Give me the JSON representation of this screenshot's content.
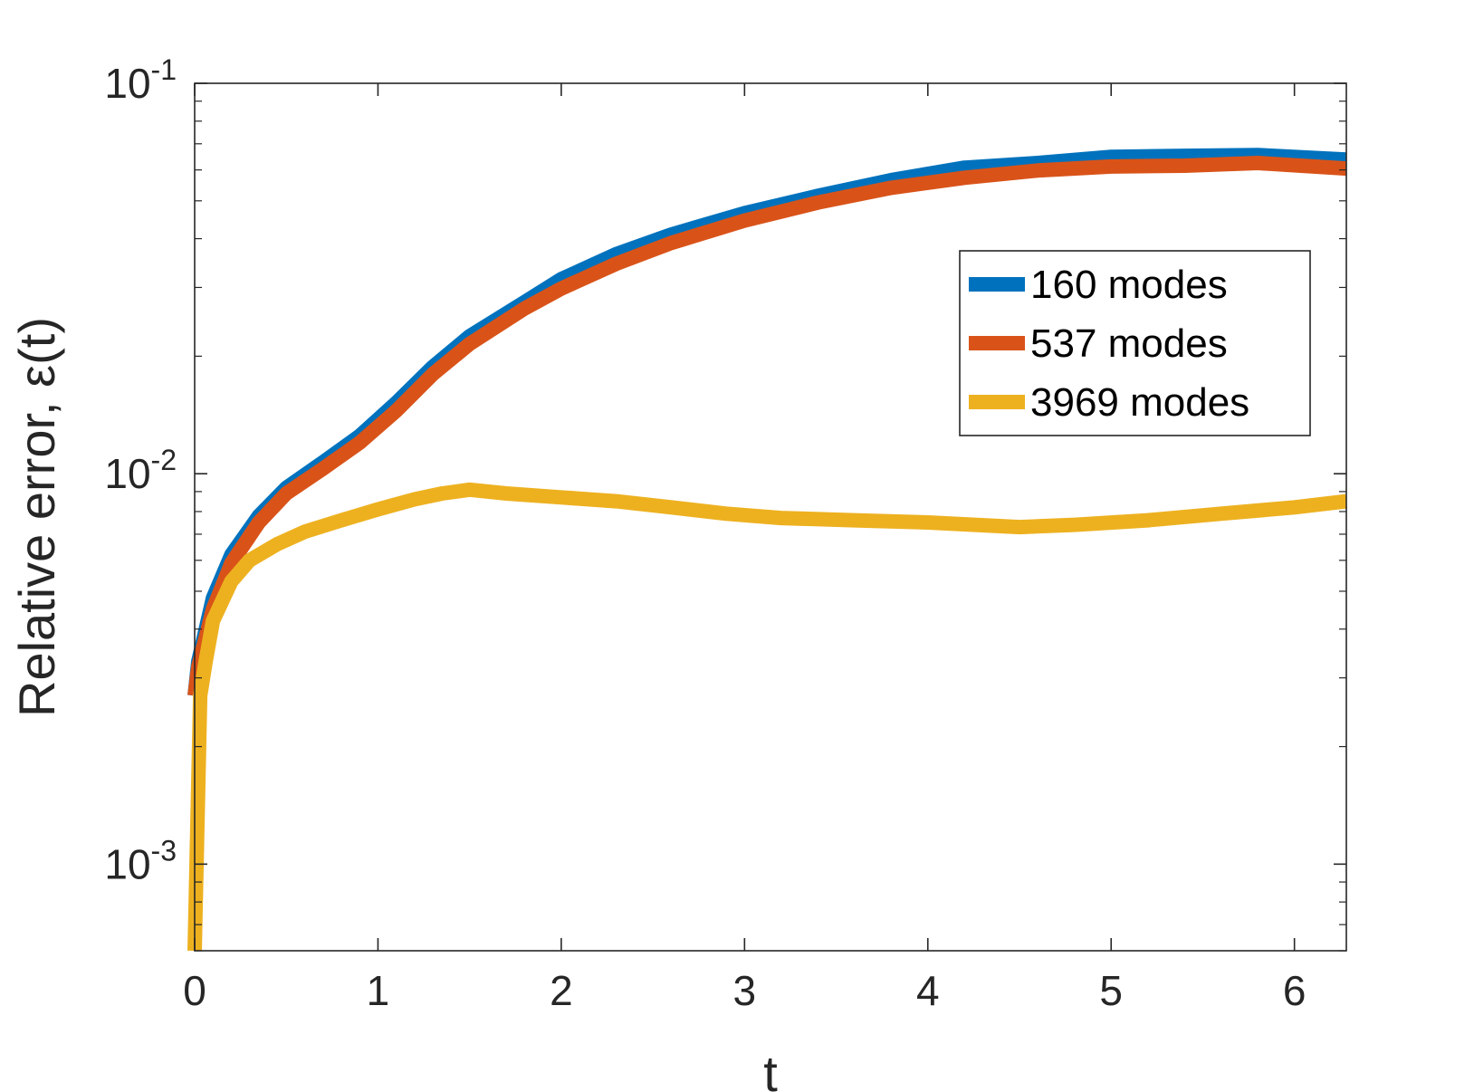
{
  "chart_data": {
    "type": "line",
    "title": "",
    "xlabel": "t",
    "ylabel": "Relative error, ε(t)",
    "xlim": [
      0,
      6.2832
    ],
    "ylim": [
      0.0006,
      0.1
    ],
    "yscale": "log",
    "grid": false,
    "legend_position": "upper-right",
    "x_ticks": [
      {
        "value": 0,
        "label": "0"
      },
      {
        "value": 1,
        "label": "1"
      },
      {
        "value": 2,
        "label": "2"
      },
      {
        "value": 3,
        "label": "3"
      },
      {
        "value": 4,
        "label": "4"
      },
      {
        "value": 5,
        "label": "5"
      },
      {
        "value": 6,
        "label": "6"
      }
    ],
    "y_ticks": [
      {
        "value": 0.001,
        "base": "10",
        "exp": "-3"
      },
      {
        "value": 0.01,
        "base": "10",
        "exp": "-2"
      },
      {
        "value": 0.1,
        "base": "10",
        "exp": "-1"
      }
    ],
    "series": [
      {
        "name": "160 modes",
        "color": "#0072bd",
        "x": [
          0,
          0.02,
          0.1,
          0.2,
          0.35,
          0.5,
          0.7,
          0.9,
          1.1,
          1.3,
          1.5,
          1.8,
          2.0,
          2.3,
          2.6,
          3.0,
          3.4,
          3.8,
          4.2,
          4.6,
          5.0,
          5.4,
          5.8,
          6.2832
        ],
        "y": [
          0.0027,
          0.0033,
          0.0048,
          0.0062,
          0.0078,
          0.0092,
          0.0107,
          0.0125,
          0.0152,
          0.0188,
          0.0225,
          0.0275,
          0.0315,
          0.0365,
          0.041,
          0.0465,
          0.0515,
          0.0565,
          0.0608,
          0.0625,
          0.0648,
          0.0652,
          0.0655,
          0.0638
        ]
      },
      {
        "name": "537 modes",
        "color": "#d95319",
        "x": [
          0,
          0.02,
          0.1,
          0.2,
          0.35,
          0.5,
          0.7,
          0.9,
          1.1,
          1.3,
          1.5,
          1.8,
          2.0,
          2.3,
          2.6,
          3.0,
          3.4,
          3.8,
          4.2,
          4.6,
          5.0,
          5.4,
          5.8,
          6.2832
        ],
        "y": [
          0.0027,
          0.0032,
          0.0045,
          0.0059,
          0.0075,
          0.0089,
          0.0103,
          0.012,
          0.0145,
          0.018,
          0.0215,
          0.0265,
          0.0298,
          0.0345,
          0.039,
          0.0445,
          0.0495,
          0.054,
          0.0573,
          0.0598,
          0.0612,
          0.0615,
          0.0625,
          0.0605
        ]
      },
      {
        "name": "3969 modes",
        "color": "#edb120",
        "x": [
          0,
          0.03,
          0.06,
          0.1,
          0.2,
          0.3,
          0.45,
          0.6,
          0.8,
          1.0,
          1.2,
          1.35,
          1.5,
          1.7,
          2.0,
          2.3,
          2.6,
          2.9,
          3.2,
          3.6,
          4.0,
          4.5,
          4.8,
          5.2,
          5.6,
          6.0,
          6.2832
        ],
        "y": [
          0.0006,
          0.0027,
          0.0033,
          0.0042,
          0.0053,
          0.006,
          0.0066,
          0.0071,
          0.0076,
          0.0081,
          0.0086,
          0.0089,
          0.0091,
          0.0089,
          0.0087,
          0.0085,
          0.0082,
          0.0079,
          0.0077,
          0.0076,
          0.0075,
          0.0073,
          0.0074,
          0.0076,
          0.0079,
          0.0082,
          0.0085
        ]
      }
    ]
  }
}
